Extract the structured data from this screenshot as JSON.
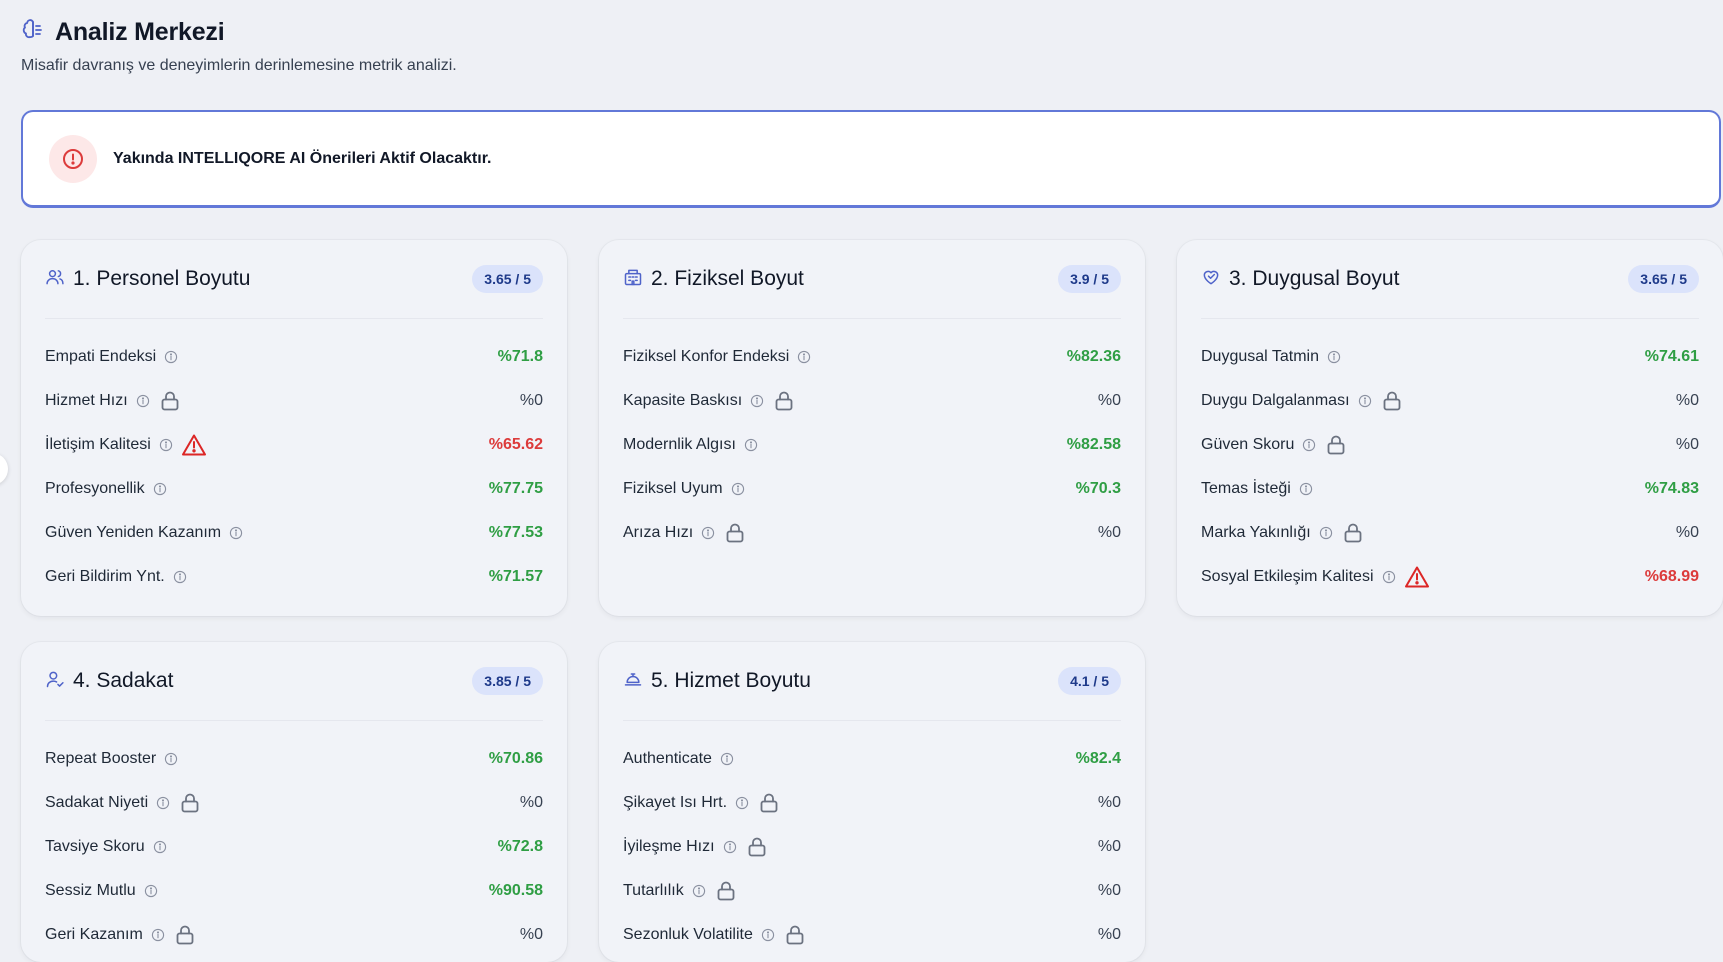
{
  "header": {
    "title": "Analiz Merkezi",
    "subtitle": "Misafir davranış ve deneyimlerin derinlemesine metrik analizi."
  },
  "banner": {
    "text": "Yakında INTELLIQORE AI Önerileri Aktif Olacaktır."
  },
  "colors": {
    "green": "#2f9e44",
    "red": "#dc3b3b",
    "accent": "#6278d8",
    "badge_bg": "#dbe3fb"
  },
  "cards": [
    {
      "title": "1. Personel Boyutu",
      "score": "3.65 / 5",
      "icon": "users-icon",
      "metrics": [
        {
          "label": "Empati Endeksi",
          "value": "%71.8",
          "status": "good"
        },
        {
          "label": "Hizmet Hızı",
          "value": "%0",
          "status": "locked"
        },
        {
          "label": "İletişim Kalitesi",
          "value": "%65.62",
          "status": "warn"
        },
        {
          "label": "Profesyonellik",
          "value": "%77.75",
          "status": "good"
        },
        {
          "label": "Güven Yeniden Kazanım",
          "value": "%77.53",
          "status": "good"
        },
        {
          "label": "Geri Bildirim Ynt.",
          "value": "%71.57",
          "status": "good"
        }
      ]
    },
    {
      "title": "2. Fiziksel Boyut",
      "score": "3.9 / 5",
      "icon": "building-icon",
      "metrics": [
        {
          "label": "Fiziksel Konfor Endeksi",
          "value": "%82.36",
          "status": "good"
        },
        {
          "label": "Kapasite Baskısı",
          "value": "%0",
          "status": "locked"
        },
        {
          "label": "Modernlik Algısı",
          "value": "%82.58",
          "status": "good"
        },
        {
          "label": "Fiziksel Uyum",
          "value": "%70.3",
          "status": "good"
        },
        {
          "label": "Arıza Hızı",
          "value": "%0",
          "status": "locked"
        }
      ]
    },
    {
      "title": "3. Duygusal Boyut",
      "score": "3.65 / 5",
      "icon": "heart-handshake-icon",
      "metrics": [
        {
          "label": "Duygusal Tatmin",
          "value": "%74.61",
          "status": "good"
        },
        {
          "label": "Duygu Dalgalanması",
          "value": "%0",
          "status": "locked"
        },
        {
          "label": "Güven Skoru",
          "value": "%0",
          "status": "locked"
        },
        {
          "label": "Temas İsteği",
          "value": "%74.83",
          "status": "good"
        },
        {
          "label": "Marka Yakınlığı",
          "value": "%0",
          "status": "locked"
        },
        {
          "label": "Sosyal Etkileşim Kalitesi",
          "value": "%68.99",
          "status": "warn"
        }
      ]
    },
    {
      "title": "4. Sadakat",
      "score": "3.85 / 5",
      "icon": "user-check-icon",
      "metrics": [
        {
          "label": "Repeat Booster",
          "value": "%70.86",
          "status": "good"
        },
        {
          "label": "Sadakat Niyeti",
          "value": "%0",
          "status": "locked"
        },
        {
          "label": "Tavsiye Skoru",
          "value": "%72.8",
          "status": "good"
        },
        {
          "label": "Sessiz Mutlu",
          "value": "%90.58",
          "status": "good"
        },
        {
          "label": "Geri Kazanım",
          "value": "%0",
          "status": "locked"
        }
      ]
    },
    {
      "title": "5. Hizmet Boyutu",
      "score": "4.1 / 5",
      "icon": "concierge-bell-icon",
      "metrics": [
        {
          "label": "Authenticate",
          "value": "%82.4",
          "status": "good"
        },
        {
          "label": "Şikayet Isı Hrt.",
          "value": "%0",
          "status": "locked"
        },
        {
          "label": "İyileşme Hızı",
          "value": "%0",
          "status": "locked"
        },
        {
          "label": "Tutarlılık",
          "value": "%0",
          "status": "locked"
        },
        {
          "label": "Sezonluk Volatilite",
          "value": "%0",
          "status": "locked"
        }
      ]
    }
  ]
}
